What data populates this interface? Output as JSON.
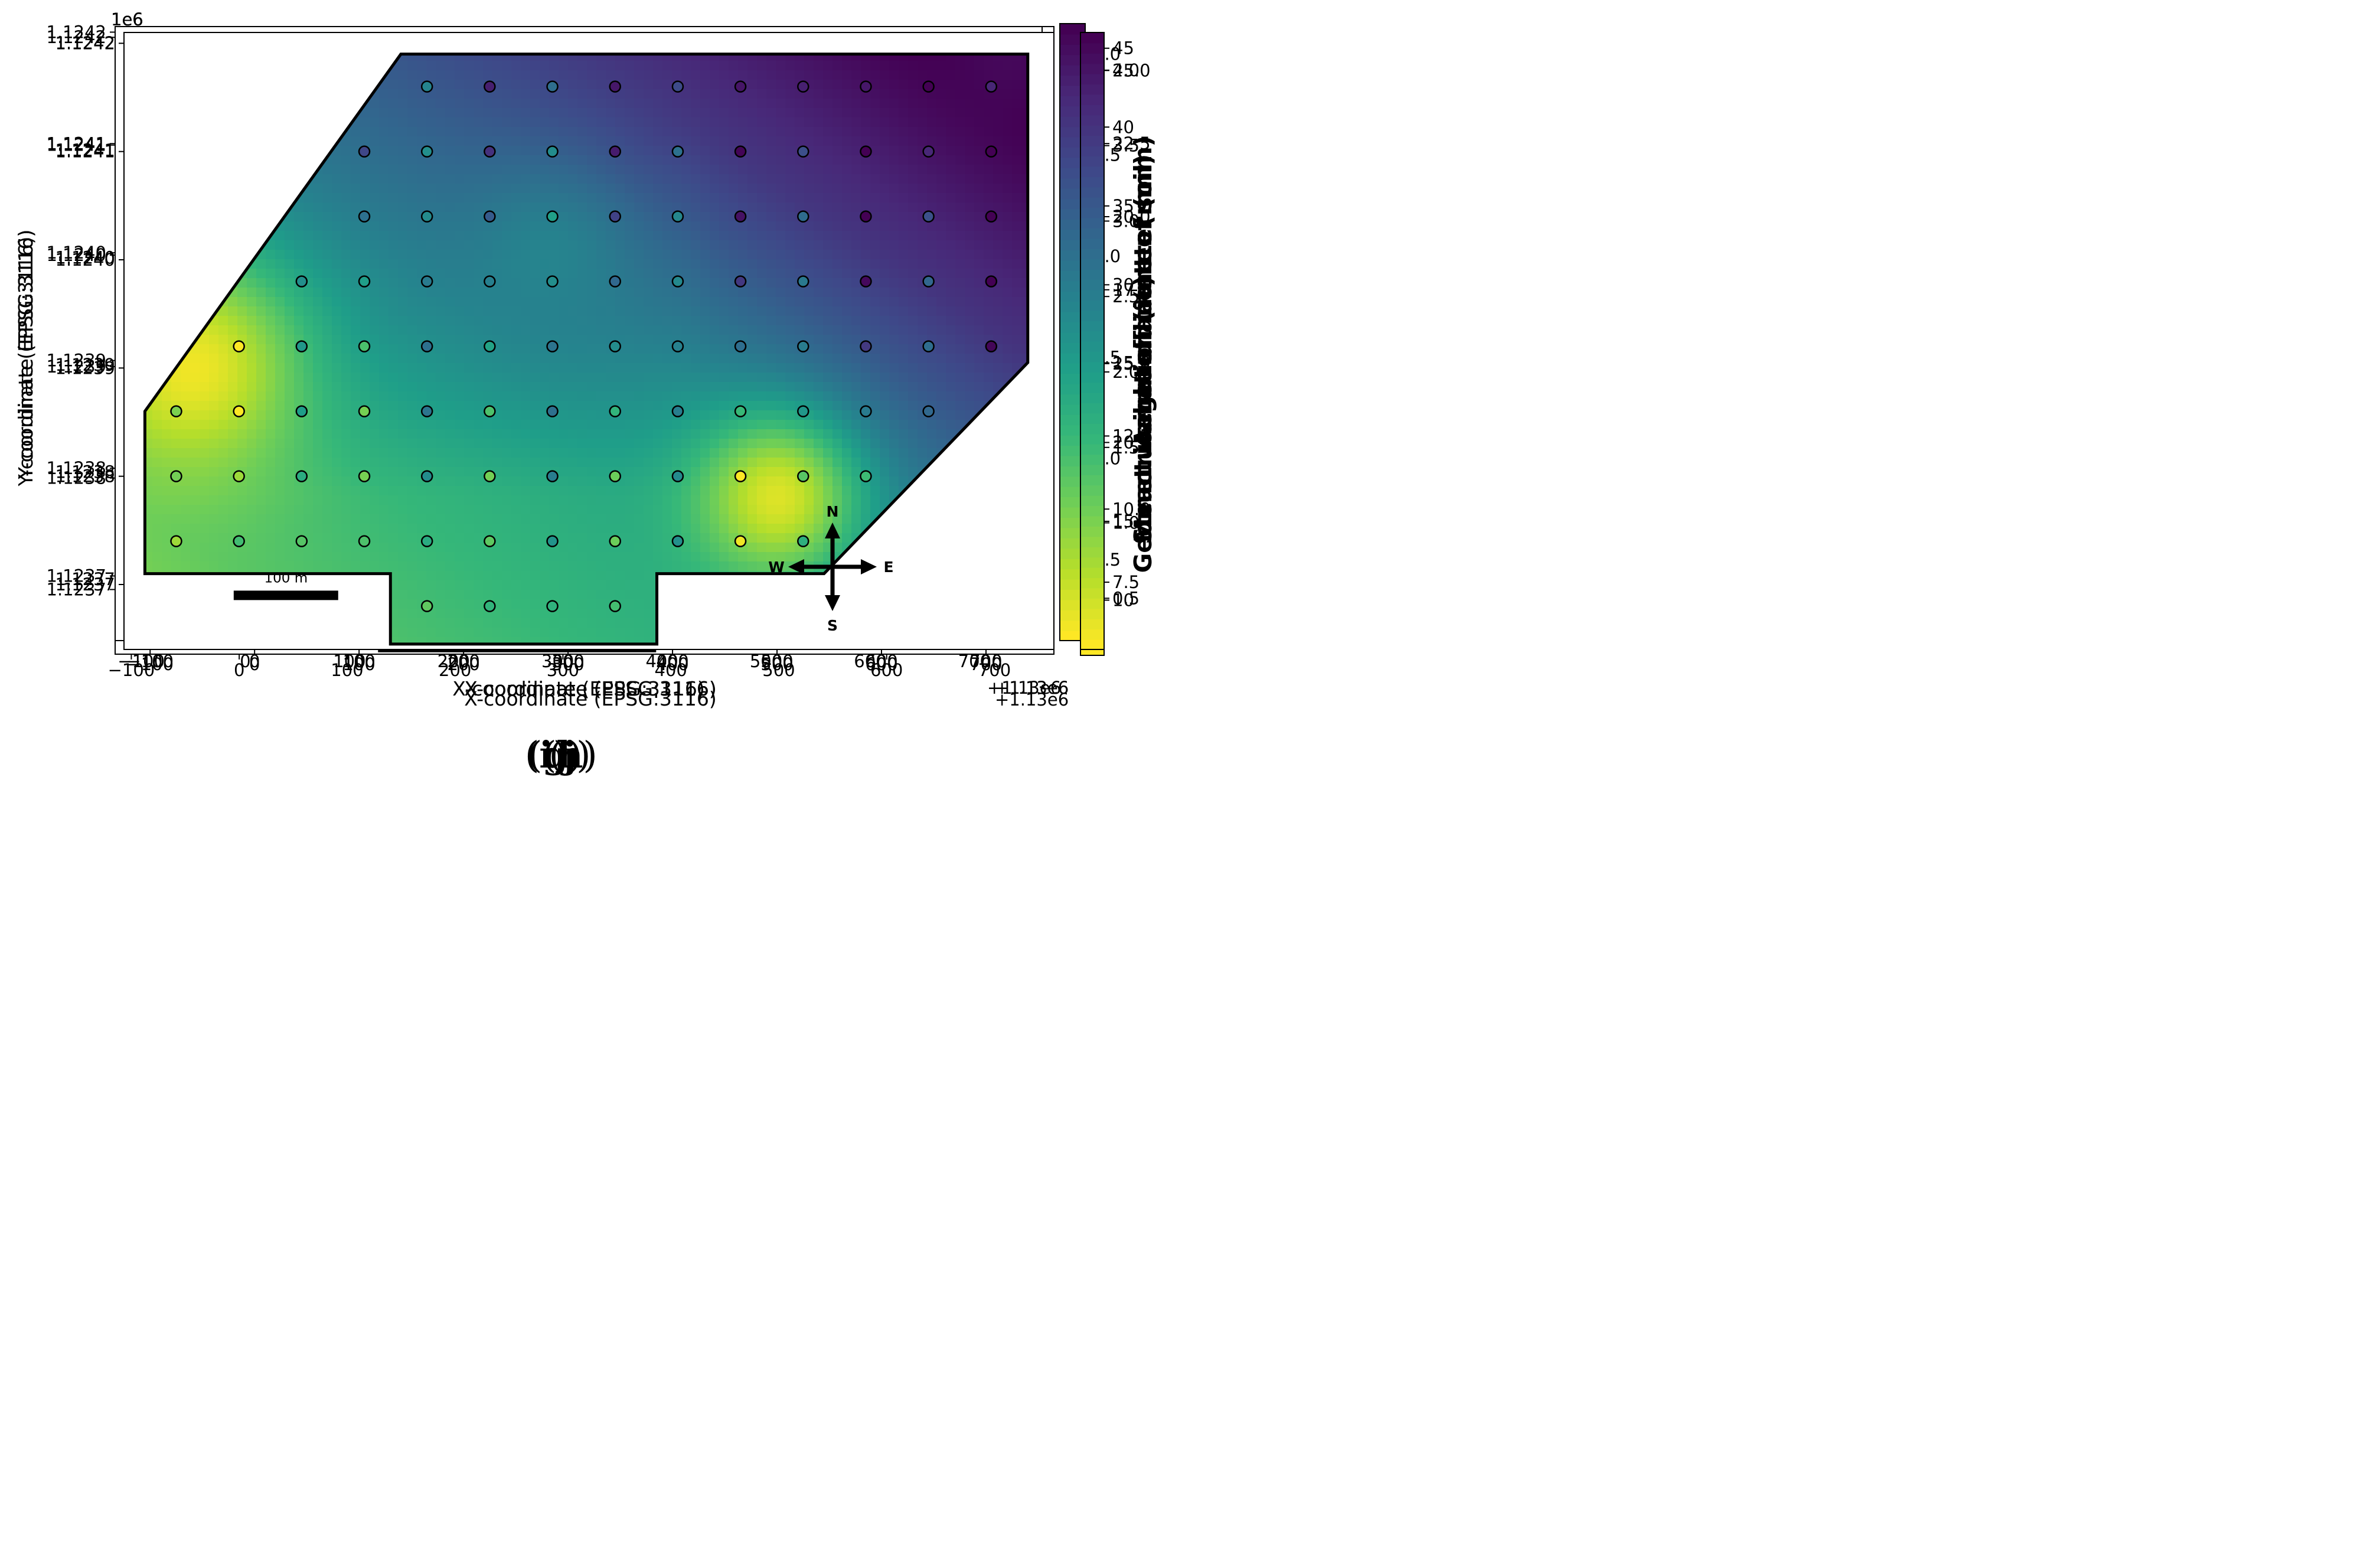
{
  "figure": {
    "x_axis_label": "X-coordinate (EPSG:3116)",
    "y_axis_label": "Y-coordinate (EPSG:3116)",
    "x_offset_label": "+1.13e6",
    "y_scale_label": "1e6",
    "x_ticks": [
      "−100",
      "0",
      "100",
      "200",
      "300",
      "400",
      "500",
      "600",
      "700"
    ],
    "y_ticks": [
      "1.1237",
      "1.1238",
      "1.1239",
      "1.1240",
      "1.1241",
      "1.1242"
    ],
    "scale_bar_label": "100 m",
    "compass": {
      "n": "N",
      "s": "S",
      "e": "E",
      "w": "W"
    }
  },
  "chart_data": [
    {
      "id": "g",
      "type": "heatmap",
      "panel_letter": "g",
      "colorbar_label": "Aeration (%)",
      "colorbar_ticks": [
        "10",
        "15",
        "20",
        "25",
        "30",
        "35",
        "40",
        "45"
      ],
      "colorbar_tick_values": [
        10,
        15,
        20,
        25,
        30,
        35,
        40,
        45
      ],
      "value_range": [
        6.5,
        46
      ],
      "field_base": 0.58,
      "xlim": [
        -115,
        755
      ],
      "ylim": [
        1123642,
        1124205
      ],
      "boundary_polygon": [
        [
          -105,
          1123710
        ],
        [
          130,
          1123710
        ],
        [
          130,
          1123645
        ],
        [
          385,
          1123645
        ],
        [
          385,
          1123710
        ],
        [
          545,
          1123710
        ],
        [
          740,
          1123905
        ],
        [
          740,
          1124190
        ],
        [
          140,
          1124190
        ],
        [
          -105,
          1123860
        ]
      ],
      "features": [
        {
          "x": 110,
          "y": 1124100,
          "v": 0.98,
          "s": 60
        },
        {
          "x": -75,
          "y": 1123880,
          "v": 0.9,
          "s": 55
        },
        {
          "x": -10,
          "y": 1123860,
          "v": 0.9,
          "s": 45
        },
        {
          "x": 500,
          "y": 1123800,
          "v": 0.95,
          "s": 55
        },
        {
          "x": 380,
          "y": 1123970,
          "v": 0.85,
          "s": 45
        },
        {
          "x": 470,
          "y": 1124000,
          "v": 0.85,
          "s": 45
        },
        {
          "x": 60,
          "y": 1123830,
          "v": 0.85,
          "s": 40
        },
        {
          "x": 220,
          "y": 1124100,
          "v": 0.8,
          "s": 45
        },
        {
          "x": 650,
          "y": 1124150,
          "v": 0.8,
          "s": 45
        },
        {
          "x": 345,
          "y": 1124040,
          "v": 0.08,
          "s": 40
        },
        {
          "x": 290,
          "y": 1123900,
          "v": 0.05,
          "s": 45
        },
        {
          "x": 290,
          "y": 1123680,
          "v": 0.08,
          "s": 45
        },
        {
          "x": -15,
          "y": 1123800,
          "v": 0.05,
          "s": 35
        },
        {
          "x": 165,
          "y": 1123790,
          "v": 0.12,
          "s": 45
        },
        {
          "x": 530,
          "y": 1123970,
          "v": 0.05,
          "s": 45
        },
        {
          "x": 610,
          "y": 1124040,
          "v": 0.1,
          "s": 50
        },
        {
          "x": 590,
          "y": 1123800,
          "v": 0.1,
          "s": 40
        },
        {
          "x": 480,
          "y": 1124110,
          "v": 0.2,
          "s": 50
        },
        {
          "x": 700,
          "y": 1124100,
          "v": 0.25,
          "s": 40
        }
      ],
      "sample_points": {
        "color_mode": "none"
      }
    },
    {
      "id": "h",
      "type": "heatmap",
      "panel_letter": "h",
      "colorbar_label": "Mean weight diameter (mm)",
      "colorbar_ticks": [
        "0.5",
        "1.0",
        "1.5",
        "2.0",
        "2.5",
        "3.0",
        "3.5",
        "4.0"
      ],
      "colorbar_tick_values": [
        0.5,
        1.0,
        1.5,
        2.0,
        2.5,
        3.0,
        3.5,
        4.0
      ],
      "value_range": [
        0.2,
        4.25
      ],
      "field_base": 0.55,
      "xlim": [
        -125,
        765
      ],
      "ylim": [
        1123640,
        1124210
      ],
      "boundary_polygon": [
        [
          -105,
          1123710
        ],
        [
          130,
          1123710
        ],
        [
          130,
          1123645
        ],
        [
          385,
          1123645
        ],
        [
          385,
          1123710
        ],
        [
          545,
          1123710
        ],
        [
          740,
          1123905
        ],
        [
          740,
          1124190
        ],
        [
          140,
          1124190
        ],
        [
          -105,
          1123860
        ]
      ],
      "features": [
        {
          "x": 60,
          "y": 1124040,
          "v": 0.02,
          "s": 60
        },
        {
          "x": -60,
          "y": 1123880,
          "v": 0.15,
          "s": 50
        },
        {
          "x": -80,
          "y": 1123740,
          "v": 0.05,
          "s": 40
        },
        {
          "x": 470,
          "y": 1123980,
          "v": 0.1,
          "s": 35
        },
        {
          "x": 550,
          "y": 1123980,
          "v": 0.95,
          "s": 55
        },
        {
          "x": 470,
          "y": 1124150,
          "v": 0.95,
          "s": 50
        },
        {
          "x": 290,
          "y": 1124160,
          "v": 0.85,
          "s": 45
        },
        {
          "x": 680,
          "y": 1124090,
          "v": 0.8,
          "s": 45
        },
        {
          "x": 110,
          "y": 1123740,
          "v": 0.85,
          "s": 40
        },
        {
          "x": 360,
          "y": 1123900,
          "v": 0.8,
          "s": 50
        },
        {
          "x": 230,
          "y": 1124100,
          "v": 0.75,
          "s": 45
        },
        {
          "x": 720,
          "y": 1124030,
          "v": 0.2,
          "s": 35
        }
      ],
      "sample_points": {
        "color_mode": "none"
      }
    },
    {
      "id": "i",
      "type": "heatmap",
      "panel_letter": "i",
      "colorbar_label": "Geometric mean diameter (mm)",
      "colorbar_ticks": [
        "0.5",
        "1.0",
        "1.5",
        "2.0",
        "2.5",
        "3.0"
      ],
      "colorbar_tick_values": [
        0.5,
        1.0,
        1.5,
        2.0,
        2.5,
        3.0
      ],
      "value_range": [
        0.1,
        3.15
      ],
      "field_base": 0.55,
      "xlim": [
        -125,
        765
      ],
      "ylim": [
        1123640,
        1124210
      ],
      "boundary_polygon": [
        [
          -105,
          1123710
        ],
        [
          130,
          1123710
        ],
        [
          130,
          1123645
        ],
        [
          385,
          1123645
        ],
        [
          385,
          1123710
        ],
        [
          545,
          1123710
        ],
        [
          740,
          1123905
        ],
        [
          740,
          1124190
        ],
        [
          140,
          1124190
        ],
        [
          -105,
          1123860
        ]
      ],
      "features": [
        {
          "x": 80,
          "y": 1124050,
          "v": 0.02,
          "s": 55
        },
        {
          "x": -60,
          "y": 1123880,
          "v": 0.15,
          "s": 45
        },
        {
          "x": -90,
          "y": 1123740,
          "v": 0.05,
          "s": 35
        },
        {
          "x": 470,
          "y": 1123980,
          "v": 0.08,
          "s": 35
        },
        {
          "x": 560,
          "y": 1123970,
          "v": 0.95,
          "s": 55
        },
        {
          "x": 470,
          "y": 1124150,
          "v": 0.98,
          "s": 50
        },
        {
          "x": 290,
          "y": 1124160,
          "v": 0.8,
          "s": 40
        },
        {
          "x": 640,
          "y": 1124060,
          "v": 0.75,
          "s": 45
        },
        {
          "x": 100,
          "y": 1123740,
          "v": 0.85,
          "s": 40
        },
        {
          "x": 340,
          "y": 1123830,
          "v": 0.7,
          "s": 45
        },
        {
          "x": 230,
          "y": 1123920,
          "v": 0.75,
          "s": 50
        },
        {
          "x": 540,
          "y": 1124100,
          "v": 0.25,
          "s": 35
        },
        {
          "x": 200,
          "y": 1124180,
          "v": 0.2,
          "s": 35
        }
      ],
      "sample_points": {
        "color_mode": "none"
      }
    },
    {
      "id": "j",
      "type": "heatmap",
      "panel_letter": "j",
      "colorbar_label": "Structural coefficient of soil",
      "colorbar_ticks": [
        "7.5",
        "10.0",
        "12.5",
        "15.0",
        "17.5",
        "20.0",
        "22.5",
        "25.0"
      ],
      "colorbar_tick_values": [
        7.5,
        10.0,
        12.5,
        15.0,
        17.5,
        20.0,
        22.5,
        25.0
      ],
      "value_range": [
        5.2,
        26.3
      ],
      "field_base": 0.4,
      "xlim": [
        -125,
        765
      ],
      "ylim": [
        1123640,
        1124210
      ],
      "boundary_polygon": [
        [
          -105,
          1123710
        ],
        [
          130,
          1123710
        ],
        [
          130,
          1123645
        ],
        [
          385,
          1123645
        ],
        [
          385,
          1123710
        ],
        [
          545,
          1123710
        ],
        [
          740,
          1123905
        ],
        [
          740,
          1124190
        ],
        [
          140,
          1124190
        ],
        [
          -105,
          1123860
        ]
      ],
      "trend": {
        "type": "linear_plus",
        "cx": 0.55,
        "cy": 0.0006
      },
      "features": [
        {
          "x": -60,
          "y": 1123900,
          "v": 0.02,
          "s": 150
        },
        {
          "x": 500,
          "y": 1123780,
          "v": 0.05,
          "s": 110
        },
        {
          "x": 720,
          "y": 1124190,
          "v": 0.98,
          "s": 110
        },
        {
          "x": 280,
          "y": 1124000,
          "v": 0.55,
          "s": 120
        }
      ],
      "sample_points": {
        "color_mode": "value"
      }
    }
  ],
  "sample_grid": {
    "x_values": [
      -75,
      -15,
      45,
      105,
      165,
      225,
      285,
      345,
      405,
      465,
      525,
      585,
      645,
      705
    ],
    "rows": [
      {
        "y": 1124160,
        "x_from": 165,
        "x_to": 705
      },
      {
        "y": 1124100,
        "x_from": 105,
        "x_to": 705
      },
      {
        "y": 1124040,
        "x_from": 105,
        "x_to": 705
      },
      {
        "y": 1123980,
        "x_from": 45,
        "x_to": 705
      },
      {
        "y": 1123920,
        "x_from": -15,
        "x_to": 705
      },
      {
        "y": 1123860,
        "x_from": -75,
        "x_to": 645
      },
      {
        "y": 1123800,
        "x_from": -75,
        "x_to": 585
      },
      {
        "y": 1123740,
        "x_from": -75,
        "x_to": 525
      },
      {
        "y": 1123680,
        "x_from": 165,
        "x_to": 345
      }
    ]
  }
}
